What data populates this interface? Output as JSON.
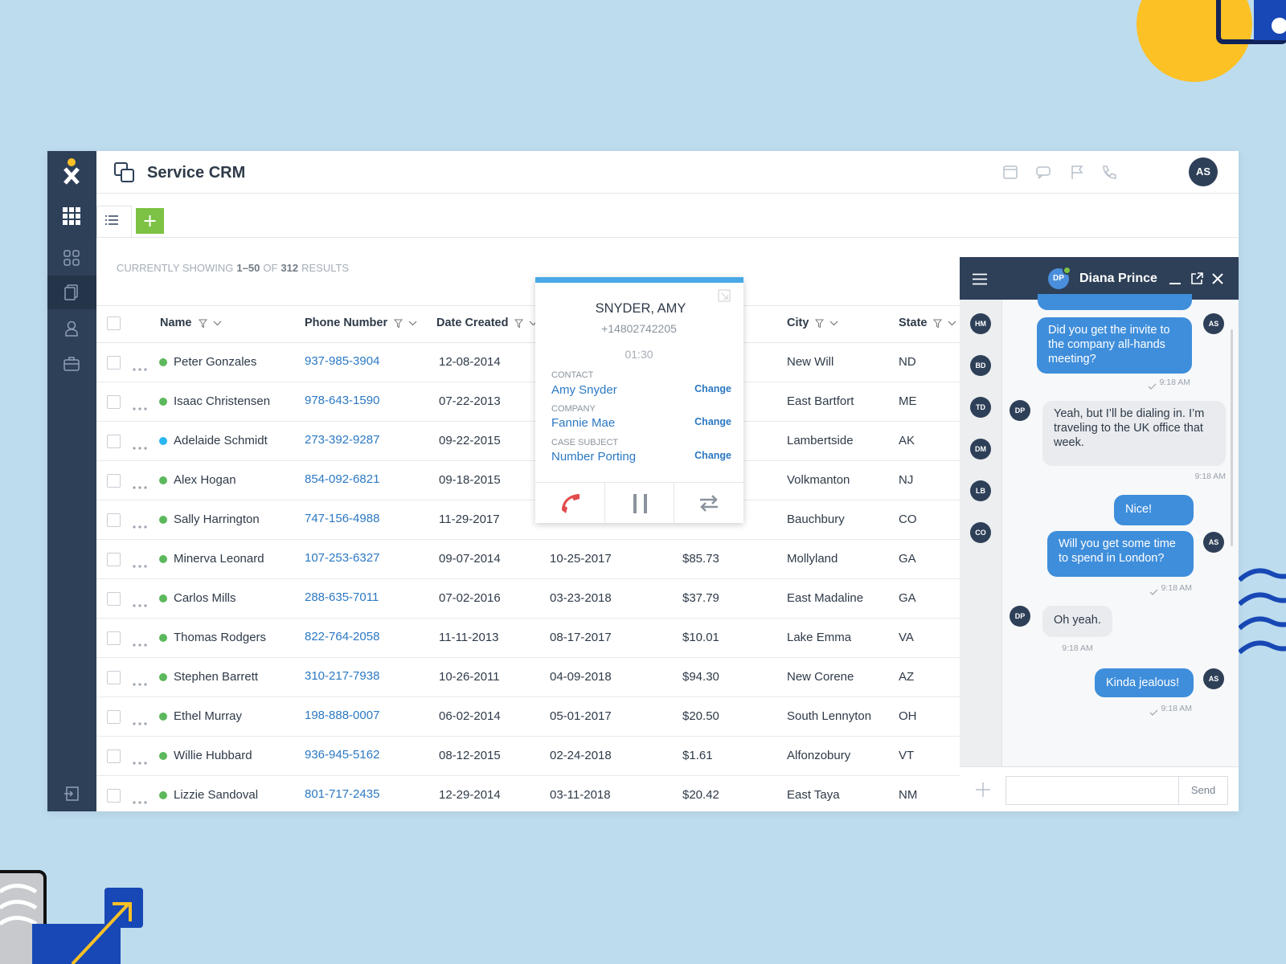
{
  "header": {
    "app_title": "Service CRM",
    "user_initials": "AS"
  },
  "results": {
    "prefix": "CURRENTLY SHOWING",
    "range": "1–50",
    "middle": "OF",
    "total": "312",
    "suffix": "RESULTS"
  },
  "table": {
    "columns": {
      "name": "Name",
      "phone": "Phone Number",
      "created": "Date Created",
      "city": "City",
      "state": "State"
    },
    "rows": [
      {
        "dot": "#5cb85c",
        "name": "Peter Gonzales",
        "phone": "937-985-3904",
        "created": "12-08-2014",
        "city": "New Will",
        "state": "ND"
      },
      {
        "dot": "#5cb85c",
        "name": "Isaac Christensen",
        "phone": "978-643-1590",
        "created": "07-22-2013",
        "city": "East Bartfort",
        "state": "ME"
      },
      {
        "dot": "#29b6f0",
        "name": "Adelaide Schmidt",
        "phone": "273-392-9287",
        "created": "09-22-2015",
        "city": "Lambertside",
        "state": "AK"
      },
      {
        "dot": "#5cb85c",
        "name": "Alex Hogan",
        "phone": "854-092-6821",
        "created": "09-18-2015",
        "city": "Volkmanton",
        "state": "NJ"
      },
      {
        "dot": "#5cb85c",
        "name": "Sally Harrington",
        "phone": "747-156-4988",
        "created": "11-29-2017",
        "city": "Bauchbury",
        "state": "CO"
      },
      {
        "dot": "#5cb85c",
        "name": "Minerva Leonard",
        "phone": "107-253-6327",
        "created": "09-07-2014",
        "updated": "10-25-2017",
        "amount": "$85.73",
        "city": "Mollyland",
        "state": "GA"
      },
      {
        "dot": "#5cb85c",
        "name": "Carlos Mills",
        "phone": "288-635-7011",
        "created": "07-02-2016",
        "updated": "03-23-2018",
        "amount": "$37.79",
        "city": "East Madaline",
        "state": "GA"
      },
      {
        "dot": "#5cb85c",
        "name": "Thomas Rodgers",
        "phone": "822-764-2058",
        "created": "11-11-2013",
        "updated": "08-17-2017",
        "amount": "$10.01",
        "city": "Lake Emma",
        "state": "VA"
      },
      {
        "dot": "#5cb85c",
        "name": "Stephen Barrett",
        "phone": "310-217-7938",
        "created": "10-26-2011",
        "updated": "04-09-2018",
        "amount": "$94.30",
        "city": "New Corene",
        "state": "AZ"
      },
      {
        "dot": "#5cb85c",
        "name": "Ethel Murray",
        "phone": "198-888-0007",
        "created": "06-02-2014",
        "updated": "05-01-2017",
        "amount": "$20.50",
        "city": "South Lennyton",
        "state": "OH"
      },
      {
        "dot": "#5cb85c",
        "name": "Willie Hubbard",
        "phone": "936-945-5162",
        "created": "08-12-2015",
        "updated": "02-24-2018",
        "amount": "$1.61",
        "city": "Alfonzobury",
        "state": "VT"
      },
      {
        "dot": "#5cb85c",
        "name": "Lizzie Sandoval",
        "phone": "801-717-2435",
        "created": "12-29-2014",
        "updated": "03-11-2018",
        "amount": "$20.42",
        "city": "East Taya",
        "state": "NM"
      }
    ]
  },
  "call": {
    "name": "SNYDER, AMY",
    "number": "+14802742205",
    "timer": "01:30",
    "fields": [
      {
        "label": "CONTACT",
        "value": "Amy Snyder",
        "action": "Change"
      },
      {
        "label": "COMPANY",
        "value": "Fannie Mae",
        "action": "Change"
      },
      {
        "label": "CASE SUBJECT",
        "value": "Number Porting",
        "action": "Change"
      }
    ]
  },
  "chat": {
    "contact": {
      "name": "Diana Prince",
      "initials": "DP"
    },
    "avatars": [
      "HM",
      "BD",
      "TD",
      "DM",
      "LB",
      "CO"
    ],
    "messages": [
      {
        "outgoing": true,
        "from": "AS",
        "text": "Did you get the invite to the company all-hands meeting?",
        "time": "9:18 AM"
      },
      {
        "outgoing": false,
        "from": "DP",
        "text": "Yeah, but I’ll be dialing in. I’m traveling to the UK office that week.",
        "time": "9:18 AM"
      },
      {
        "outgoing": true,
        "text": "Nice!"
      },
      {
        "outgoing": true,
        "from": "AS",
        "text": "Will you get some time to spend in London?",
        "time": "9:18 AM"
      },
      {
        "outgoing": false,
        "from": "DP",
        "text": "Oh yeah.",
        "time": "9:18 AM"
      },
      {
        "outgoing": true,
        "from": "AS",
        "text": "Kinda jealous!",
        "time": "9:18 AM"
      }
    ],
    "send": "Send"
  }
}
